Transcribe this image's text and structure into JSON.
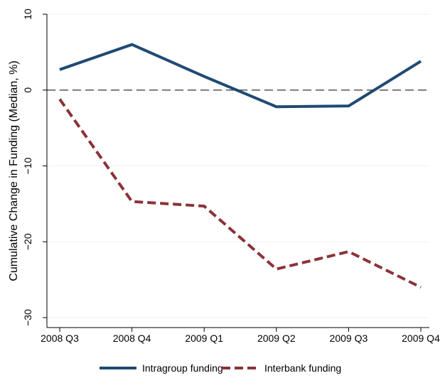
{
  "chart_data": {
    "type": "line",
    "title": "",
    "xlabel": "",
    "ylabel": "Cumulative Change in Funding (Median, %)",
    "categories": [
      "2008 Q3",
      "2008 Q4",
      "2009 Q1",
      "2009 Q2",
      "2009 Q3",
      "2009 Q4"
    ],
    "ylim": [
      -30,
      10
    ],
    "yticks": [
      -30,
      -20,
      -10,
      0,
      10
    ],
    "ytick_labels": [
      "−30",
      "−20",
      "−10",
      "0",
      "10"
    ],
    "grid": true,
    "reference_line": {
      "y": 0,
      "style": "dashed"
    },
    "legend_position": "bottom",
    "series": [
      {
        "name": "Intragroup funding",
        "values": [
          2.7,
          6.0,
          1.8,
          -2.2,
          -2.1,
          3.8
        ],
        "color": "#1f4a73",
        "style": "solid"
      },
      {
        "name": "Interbank funding",
        "values": [
          -1.2,
          -14.7,
          -15.3,
          -23.6,
          -21.3,
          -26.0
        ],
        "color": "#8a3238",
        "style": "dashed"
      }
    ]
  }
}
